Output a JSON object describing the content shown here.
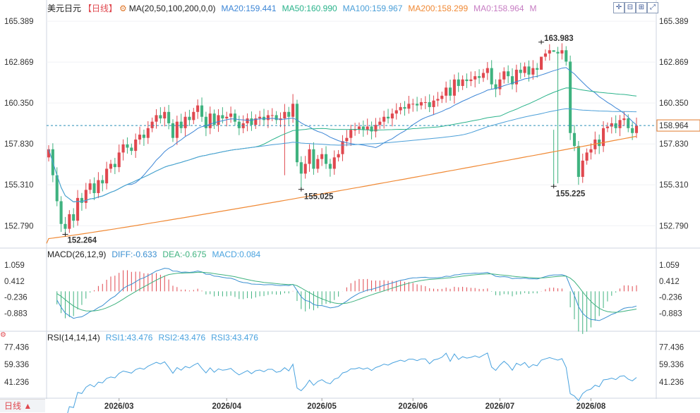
{
  "header": {
    "symbol": "美元日元",
    "period": "【日线】",
    "settings_icon": "gear-icon",
    "ma_label": "MA(20,50,100,200,0,0)",
    "ma20": "MA20:159.441",
    "ma50": "MA50:160.990",
    "ma100": "MA100:159.967",
    "ma200": "MA200:158.299",
    "ma0": "MA0:158.964",
    "m": "M"
  },
  "toolbar": {
    "icons": [
      "crosshair-icon",
      "zoom-out-icon",
      "zoom-in-icon",
      "expand-icon"
    ],
    "glyphs": [
      "✛",
      "⊟",
      "⊞",
      "⤢"
    ]
  },
  "colors": {
    "up": "#e0484f",
    "down": "#3fb27f",
    "ma20": "#3d86d6",
    "ma50": "#2bb38b",
    "ma100": "#4b9fd8",
    "ma200": "#f08a36",
    "ma0": "#c77dc3",
    "macd_diff": "#3a8fd1",
    "macd_dea": "#3fb27f",
    "rsi": "#4aa3df",
    "accent": "#e0484f"
  },
  "chart_data": [
    {
      "type": "candlestick",
      "title": "美元日元 【日线】",
      "y_ticks": [
        "165.389",
        "162.869",
        "160.350",
        "157.830",
        "155.310",
        "152.790"
      ],
      "ylim": [
        151.5,
        166.0
      ],
      "x_ticks": [
        "2026/03",
        "2026/04",
        "2026/05",
        "2026/06",
        "2026/07",
        "2026/08"
      ],
      "annotations": {
        "low1": "152.264",
        "low2": "155.025",
        "high": "163.983",
        "low3": "155.225"
      },
      "current_price": "158.964",
      "closes": [
        157.5,
        155.9,
        154.3,
        152.9,
        152.6,
        153.5,
        153.1,
        154.5,
        154.2,
        155.0,
        155.4,
        154.8,
        155.6,
        155.4,
        156.3,
        156.6,
        156.4,
        157.3,
        157.8,
        157.6,
        157.4,
        158.1,
        158.4,
        158.2,
        158.8,
        159.2,
        159.6,
        159.4,
        159.8,
        159.1,
        158.2,
        159.2,
        158.8,
        159.5,
        159.3,
        159.8,
        160.2,
        159.5,
        158.8,
        159.7,
        159.0,
        159.6,
        159.4,
        159.5,
        159.7,
        159.2,
        158.8,
        159.1,
        159.4,
        159.0,
        159.4,
        159.5,
        159.3,
        159.6,
        159.6,
        159.3,
        159.4,
        159.8,
        159.5,
        160.3,
        156.7,
        156.0,
        156.6,
        157.5,
        156.3,
        156.9,
        157.2,
        156.6,
        156.3,
        157.0,
        157.2,
        158.0,
        158.2,
        158.7,
        158.7,
        158.9,
        158.7,
        158.9,
        158.6,
        159.0,
        159.2,
        159.5,
        159.4,
        159.7,
        159.9,
        160.1,
        160.0,
        160.3,
        160.3,
        160.2,
        160.4,
        160.4,
        160.1,
        160.5,
        160.6,
        160.8,
        161.3,
        160.8,
        161.8,
        161.4,
        161.8,
        161.7,
        161.8,
        162.0,
        161.9,
        162.2,
        162.5,
        161.5,
        161.2,
        161.8,
        162.3,
        162.0,
        161.5,
        162.4,
        162.2,
        162.6,
        162.1,
        162.5,
        162.4,
        163.2,
        163.4,
        163.6,
        163.5,
        163.4,
        163.6,
        162.9,
        158.5,
        157.7,
        155.8,
        156.8,
        157.3,
        157.5,
        158.1,
        157.7,
        158.8,
        158.9,
        159.1,
        158.8,
        159.3,
        159.4,
        158.8,
        158.5,
        158.96
      ],
      "series": [
        {
          "name": "MA20:159.441"
        },
        {
          "name": "MA50:160.990"
        },
        {
          "name": "MA100:159.967"
        },
        {
          "name": "MA200:158.299"
        },
        {
          "name": "MA0:158.964"
        }
      ]
    },
    {
      "type": "bar",
      "title": "MACD(26,12,9)",
      "y_ticks": [
        "1.059",
        "0.412",
        "-0.236",
        "-0.883"
      ],
      "ylim": [
        -1.55,
        1.4
      ],
      "series": [
        {
          "name": "DIFF:-0.633"
        },
        {
          "name": "DEA:-0.675"
        },
        {
          "name": "MACD:0.084"
        }
      ]
    },
    {
      "type": "line",
      "title": "RSI(14,14,14)",
      "y_ticks": [
        "77.436",
        "59.336",
        "41.236"
      ],
      "ylim": [
        25,
        85
      ],
      "series": [
        {
          "name": "RSI1:43.476"
        },
        {
          "name": "RSI2:43.476"
        },
        {
          "name": "RSI3:43.476"
        }
      ]
    }
  ],
  "footer": {
    "period_tab": "日线 ▲"
  }
}
